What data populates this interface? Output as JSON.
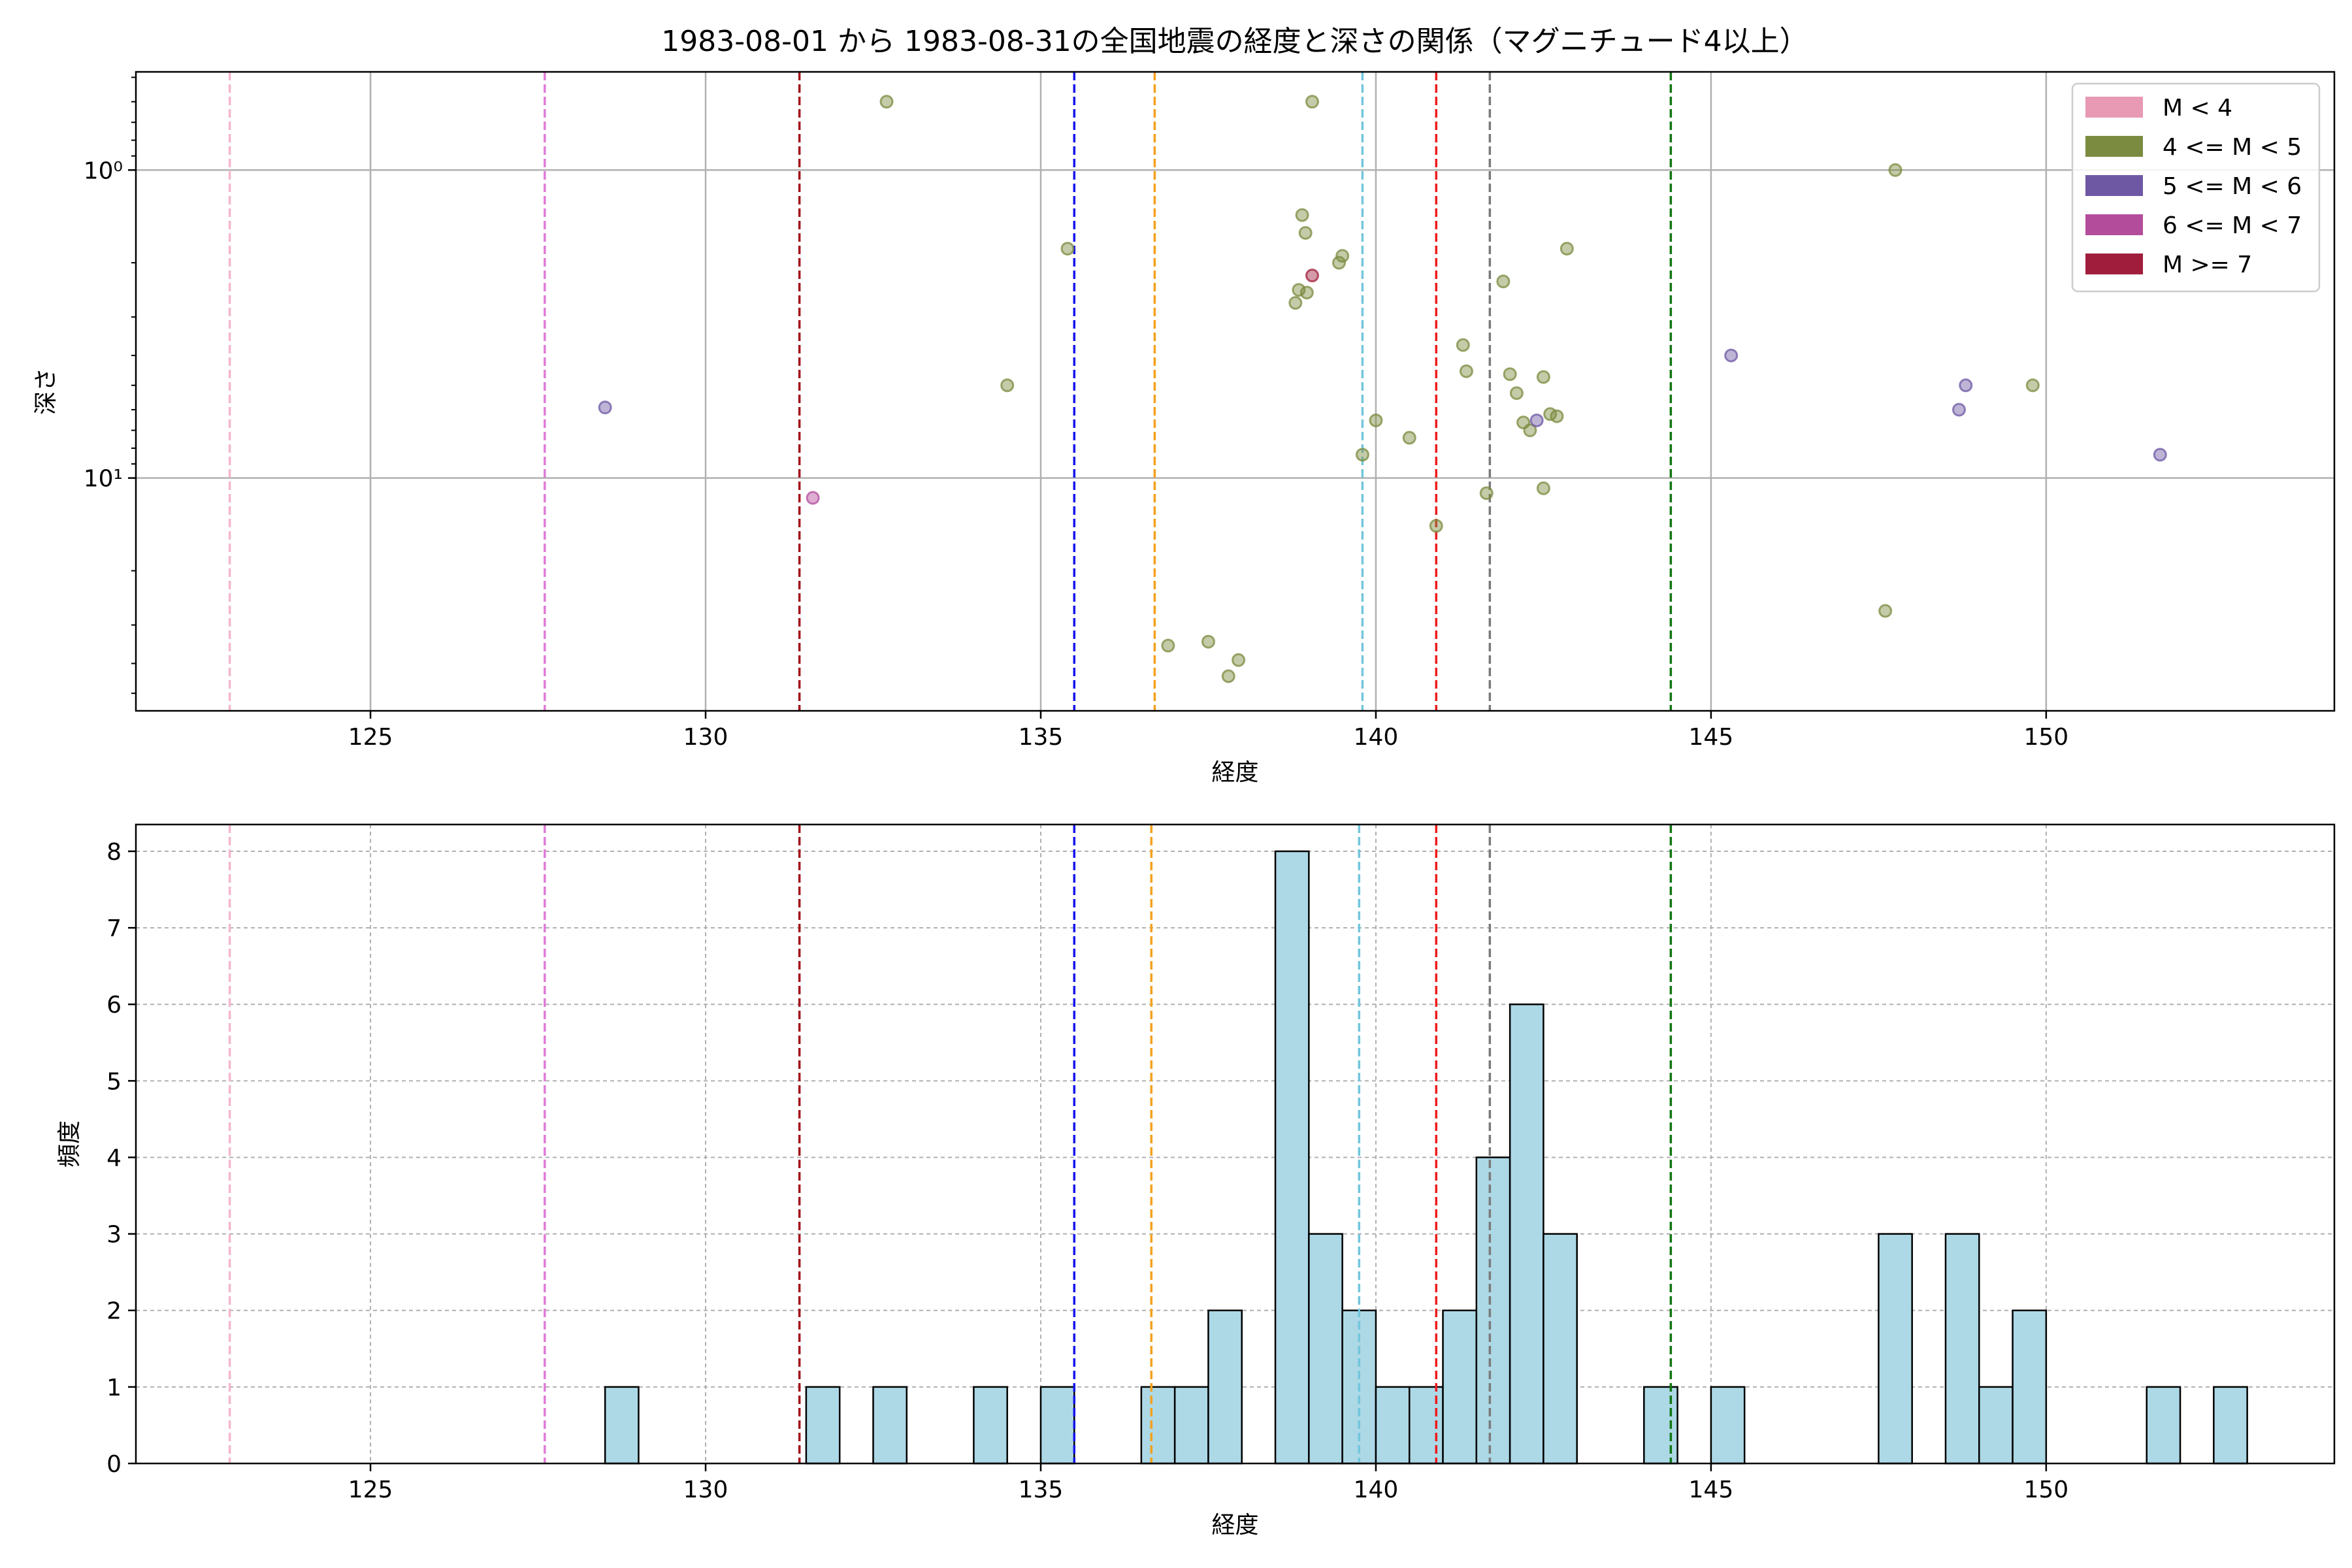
{
  "figure_title": "1983-08-01 から 1983-08-31の全国地震の経度と深さの関係（マグニチュード4以上）",
  "chart_data": [
    {
      "type": "scatter",
      "xlabel": "経度",
      "ylabel": "深さ",
      "xlim": [
        121.5,
        154.3
      ],
      "ylim": [
        57,
        0.48
      ],
      "y_scale": "log",
      "y_inverted": true,
      "x_ticks": [
        125,
        130,
        135,
        140,
        145,
        150
      ],
      "y_ticks": [
        {
          "value": 1,
          "label": "10⁰"
        },
        {
          "value": 10,
          "label": "10¹"
        }
      ],
      "grid": true,
      "legend_position": "upper right",
      "legend": [
        {
          "label": "M < 4",
          "color": "#e899b4"
        },
        {
          "label": "4 <= M < 5",
          "color": "#7b8b3f"
        },
        {
          "label": "5 <= M < 6",
          "color": "#6e58a4"
        },
        {
          "label": "6 <= M < 7",
          "color": "#b44c9c"
        },
        {
          "label": "M >= 7",
          "color": "#a01e3c"
        }
      ],
      "reference_lines": [
        {
          "x": 122.9,
          "color": "#f4b6cf"
        },
        {
          "x": 127.6,
          "color": "#e07bd6"
        },
        {
          "x": 131.4,
          "color": "#a3121c"
        },
        {
          "x": 135.5,
          "color": "#1515ee"
        },
        {
          "x": 136.7,
          "color": "#f5a11e"
        },
        {
          "x": 139.8,
          "color": "#73c6dc"
        },
        {
          "x": 140.9,
          "color": "#ee1c1c"
        },
        {
          "x": 141.7,
          "color": "#7a7a7a"
        },
        {
          "x": 144.4,
          "color": "#117811"
        }
      ],
      "series": [
        {
          "name": "4 <= M < 5",
          "color": "#7b8b3f",
          "points": [
            [
              132.7,
              0.6
            ],
            [
              134.5,
              5.0
            ],
            [
              135.4,
              1.8
            ],
            [
              136.9,
              35
            ],
            [
              137.5,
              34
            ],
            [
              137.8,
              44
            ],
            [
              137.95,
              39
            ],
            [
              138.8,
              2.7
            ],
            [
              138.85,
              2.45
            ],
            [
              138.9,
              1.4
            ],
            [
              138.95,
              1.6
            ],
            [
              138.97,
              2.5
            ],
            [
              139.05,
              0.6
            ],
            [
              139.45,
              2.0
            ],
            [
              139.5,
              1.9
            ],
            [
              139.8,
              8.4
            ],
            [
              140.0,
              6.5
            ],
            [
              140.5,
              7.4
            ],
            [
              140.9,
              14.3
            ],
            [
              141.3,
              3.7
            ],
            [
              141.35,
              4.5
            ],
            [
              141.65,
              11.2
            ],
            [
              141.9,
              2.3
            ],
            [
              142.0,
              4.6
            ],
            [
              142.1,
              5.3
            ],
            [
              142.2,
              6.6
            ],
            [
              142.3,
              7.0
            ],
            [
              142.5,
              4.7
            ],
            [
              142.5,
              10.8
            ],
            [
              142.6,
              6.2
            ],
            [
              142.7,
              6.3
            ],
            [
              142.85,
              1.8
            ],
            [
              147.6,
              27
            ],
            [
              147.75,
              1.0
            ],
            [
              149.8,
              5.0
            ]
          ]
        },
        {
          "name": "5 <= M < 6",
          "color": "#6e58a4",
          "points": [
            [
              128.5,
              5.9
            ],
            [
              142.4,
              6.5
            ],
            [
              145.3,
              4.0
            ],
            [
              148.7,
              6.0
            ],
            [
              148.8,
              5.0
            ],
            [
              151.7,
              8.4
            ]
          ]
        },
        {
          "name": "6 <= M < 7",
          "color": "#b44c9c",
          "points": [
            [
              131.6,
              11.6
            ]
          ]
        },
        {
          "name": "M >= 7",
          "color": "#a01e3c",
          "points": [
            [
              139.05,
              2.2
            ]
          ]
        }
      ]
    },
    {
      "type": "bar",
      "subtype": "histogram",
      "xlabel": "経度",
      "ylabel": "頻度",
      "xlim": [
        121.5,
        154.3
      ],
      "ylim": [
        0,
        8.35
      ],
      "x_ticks": [
        125,
        130,
        135,
        140,
        145,
        150
      ],
      "y_ticks": [
        0,
        1,
        2,
        3,
        4,
        5,
        6,
        7,
        8
      ],
      "grid": true,
      "bar_color": "#add8e6",
      "bin_width": 0.5,
      "reference_lines": [
        {
          "x": 122.9,
          "color": "#f4b6cf"
        },
        {
          "x": 127.6,
          "color": "#e07bd6"
        },
        {
          "x": 131.4,
          "color": "#a3121c"
        },
        {
          "x": 135.5,
          "color": "#1515ee"
        },
        {
          "x": 136.65,
          "color": "#f5a11e"
        },
        {
          "x": 139.75,
          "color": "#73c6dc"
        },
        {
          "x": 140.9,
          "color": "#ee1c1c"
        },
        {
          "x": 141.7,
          "color": "#7a7a7a"
        },
        {
          "x": 144.4,
          "color": "#117811"
        }
      ],
      "bins": [
        {
          "x0": 128.5,
          "count": 1
        },
        {
          "x0": 131.5,
          "count": 1
        },
        {
          "x0": 132.5,
          "count": 1
        },
        {
          "x0": 134.0,
          "count": 1
        },
        {
          "x0": 135.0,
          "count": 1
        },
        {
          "x0": 136.5,
          "count": 1
        },
        {
          "x0": 137.0,
          "count": 1
        },
        {
          "x0": 137.5,
          "count": 2
        },
        {
          "x0": 138.5,
          "count": 8
        },
        {
          "x0": 139.0,
          "count": 3
        },
        {
          "x0": 139.5,
          "count": 2
        },
        {
          "x0": 140.0,
          "count": 1
        },
        {
          "x0": 140.5,
          "count": 1
        },
        {
          "x0": 141.0,
          "count": 2
        },
        {
          "x0": 141.5,
          "count": 4
        },
        {
          "x0": 142.0,
          "count": 6
        },
        {
          "x0": 142.5,
          "count": 3
        },
        {
          "x0": 144.0,
          "count": 1
        },
        {
          "x0": 145.0,
          "count": 1
        },
        {
          "x0": 147.5,
          "count": 3
        },
        {
          "x0": 148.5,
          "count": 3
        },
        {
          "x0": 149.0,
          "count": 1
        },
        {
          "x0": 149.5,
          "count": 2
        },
        {
          "x0": 151.5,
          "count": 1
        },
        {
          "x0": 152.5,
          "count": 1
        }
      ]
    }
  ]
}
